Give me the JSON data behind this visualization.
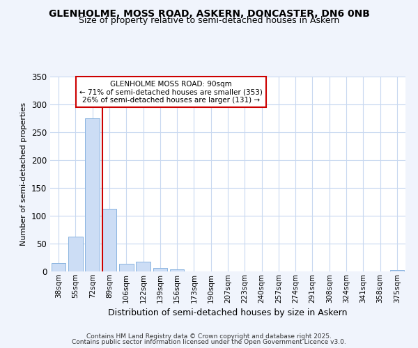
{
  "title1": "GLENHOLME, MOSS ROAD, ASKERN, DONCASTER, DN6 0NB",
  "title2": "Size of property relative to semi-detached houses in Askern",
  "xlabel": "Distribution of semi-detached houses by size in Askern",
  "ylabel": "Number of semi-detached properties",
  "categories": [
    "38sqm",
    "55sqm",
    "72sqm",
    "89sqm",
    "106sqm",
    "122sqm",
    "139sqm",
    "156sqm",
    "173sqm",
    "190sqm",
    "207sqm",
    "223sqm",
    "240sqm",
    "257sqm",
    "274sqm",
    "291sqm",
    "308sqm",
    "324sqm",
    "341sqm",
    "358sqm",
    "375sqm"
  ],
  "values": [
    15,
    62,
    275,
    112,
    14,
    18,
    6,
    4,
    0,
    0,
    0,
    0,
    0,
    0,
    0,
    0,
    0,
    0,
    0,
    0,
    2
  ],
  "bar_color": "#ccddf5",
  "bar_edge_color": "#8ab4e0",
  "vline_color": "#cc0000",
  "annotation_title": "GLENHOLME MOSS ROAD: 90sqm",
  "annotation_line1": "← 71% of semi-detached houses are smaller (353)",
  "annotation_line2": "26% of semi-detached houses are larger (131) →",
  "annotation_box_facecolor": "#ffffff",
  "annotation_box_edgecolor": "#cc0000",
  "ylim": [
    0,
    350
  ],
  "yticks": [
    0,
    50,
    100,
    150,
    200,
    250,
    300,
    350
  ],
  "footer1": "Contains HM Land Registry data © Crown copyright and database right 2025.",
  "footer2": "Contains public sector information licensed under the Open Government Licence v3.0.",
  "bg_color": "#f0f4fc",
  "plot_bg_color": "#ffffff",
  "grid_color": "#c8d8f0",
  "title1_fontsize": 10,
  "title2_fontsize": 9,
  "ylabel_fontsize": 8,
  "xlabel_fontsize": 9,
  "vline_x_index": 3
}
